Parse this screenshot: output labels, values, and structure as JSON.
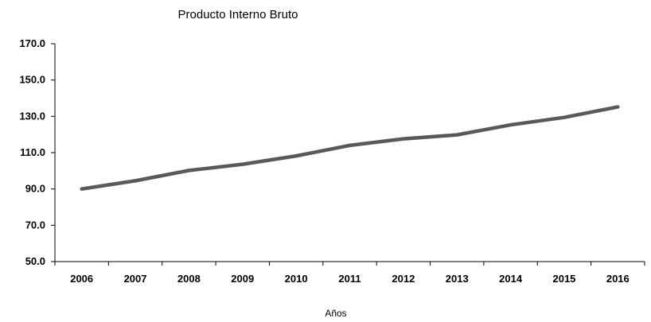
{
  "chart_data": {
    "type": "line",
    "title": "Producto Interno Bruto",
    "xlabel": "Años",
    "ylabel": "",
    "categories": [
      "2006",
      "2007",
      "2008",
      "2009",
      "2010",
      "2011",
      "2012",
      "2013",
      "2014",
      "2015",
      "2016"
    ],
    "series": [
      {
        "values": [
          90.0,
          94.5,
          100.2,
          103.6,
          108.2,
          114.0,
          117.6,
          119.8,
          125.3,
          129.4,
          135.2
        ],
        "color": "#595959"
      }
    ],
    "ylim": [
      50,
      170
    ],
    "yticks": [
      "50.0",
      "70.0",
      "90.0",
      "110.0",
      "130.0",
      "150.0",
      "170.0"
    ],
    "grid": false,
    "legend": "none"
  }
}
